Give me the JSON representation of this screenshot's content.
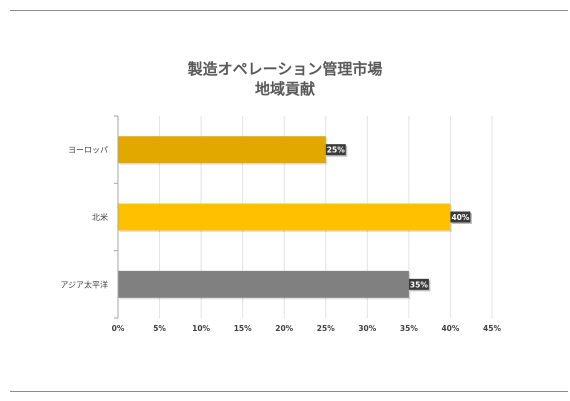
{
  "chart_data": {
    "type": "bar",
    "orientation": "horizontal",
    "title_lines": [
      "製造オペレーション管理市場",
      "地域貢献"
    ],
    "categories": [
      "ヨーロッパ",
      "北米",
      "アジア太平洋"
    ],
    "values": [
      25,
      40,
      35
    ],
    "value_labels": [
      "25%",
      "40%",
      "35%"
    ],
    "bar_colors": [
      "#e2a800",
      "#ffc000",
      "#808080"
    ],
    "xlim": [
      0,
      45
    ],
    "x_ticks": [
      0,
      5,
      10,
      15,
      20,
      25,
      30,
      35,
      40,
      45
    ],
    "x_tick_labels": [
      "0%",
      "5%",
      "10%",
      "15%",
      "20%",
      "25%",
      "30%",
      "35%",
      "40%",
      "45%"
    ],
    "grid": true,
    "legend": "none"
  }
}
